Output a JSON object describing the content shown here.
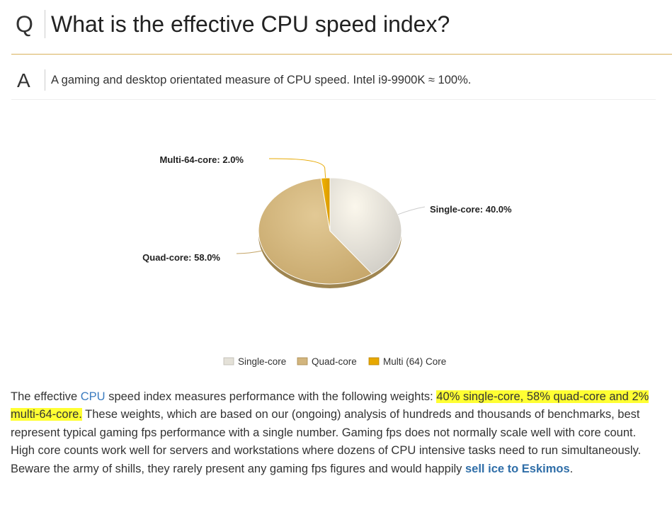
{
  "question": {
    "letter": "Q",
    "text": "What is the effective CPU speed index?"
  },
  "answer": {
    "letter": "A",
    "text": "A gaming and desktop orientated measure of CPU speed. Intel i9-9900K ≈ 100%."
  },
  "chart_data": {
    "type": "pie",
    "title": "",
    "slices": [
      {
        "name": "Single-core",
        "label": "Single-core: 40.0%",
        "value": 40.0,
        "color": "#e4e1d8"
      },
      {
        "name": "Quad-core",
        "label": "Quad-core: 58.0%",
        "value": 58.0,
        "color": "#d2b57e"
      },
      {
        "name": "Multi (64) Core",
        "label": "Multi-64-core: 2.0%",
        "value": 2.0,
        "color": "#e7a800"
      }
    ],
    "legend": {
      "placement": "bottom",
      "entries": [
        "Single-core",
        "Quad-core",
        "Multi (64) Core"
      ]
    }
  },
  "body": {
    "part1": "The effective ",
    "cpu_link": "CPU",
    "part2": " speed index measures performance with the following weights: ",
    "highlight": "40% single-core, 58% quad-core and 2% multi-64-core.",
    "part3": " These weights, which are based on our (ongoing) analysis of hundreds and thousands of benchmarks, best represent typical gaming fps performance with a single number. Gaming fps does not normally scale well with core count. High core counts work well for servers and workstations where dozens of CPU intensive tasks need to run simultaneously. Beware the army of shills, they rarely present any gaming fps figures and would happily ",
    "eskimo_link": "sell ice to Eskimos",
    "part4": "."
  }
}
